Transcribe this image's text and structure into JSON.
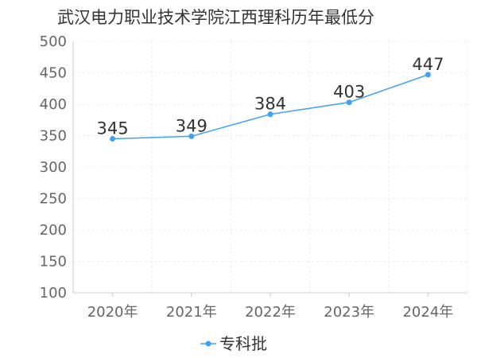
{
  "chart_data": {
    "type": "line",
    "title": "武汉电力职业技术学院江西理科历年最低分",
    "categories": [
      "2020年",
      "2021年",
      "2022年",
      "2023年",
      "2024年"
    ],
    "series": [
      {
        "name": "专科批",
        "values": [
          345,
          349,
          384,
          403,
          447
        ],
        "color": "#3fa2f7"
      }
    ],
    "ylim": [
      100,
      500
    ],
    "yticks": [
      100,
      150,
      200,
      250,
      300,
      350,
      400,
      450,
      500
    ],
    "grid": true,
    "legend_position": "bottom"
  }
}
